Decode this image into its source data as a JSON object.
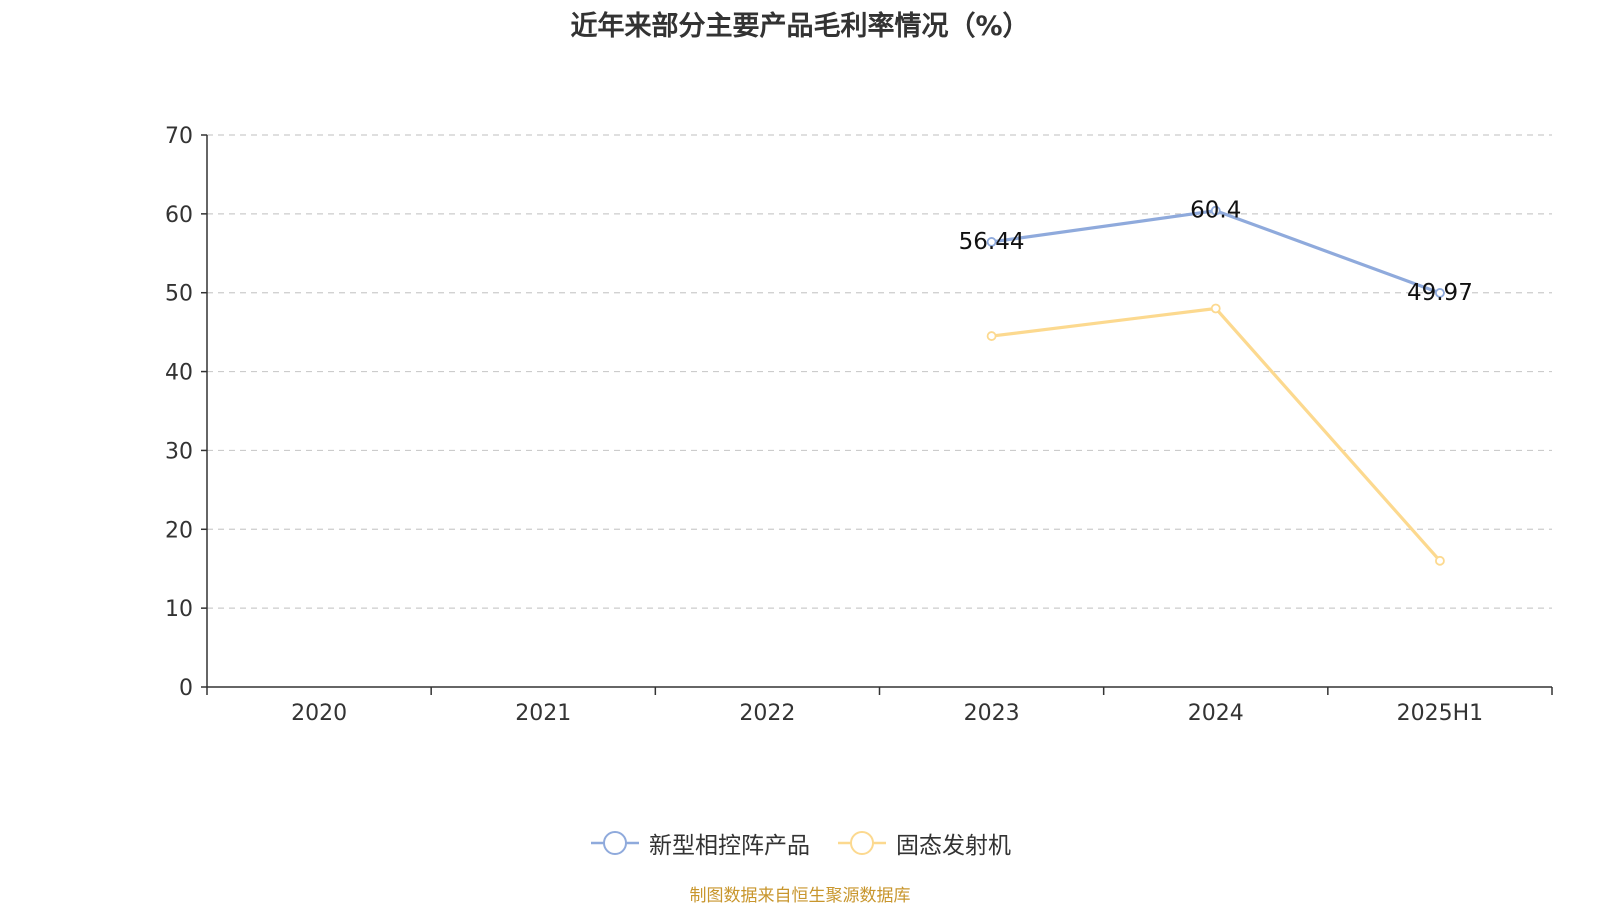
{
  "chart_data": {
    "type": "line",
    "title": "近年来部分主要产品毛利率情况（%）",
    "categories": [
      "2020",
      "2021",
      "2022",
      "2023",
      "2024",
      "2025H1"
    ],
    "ylim": [
      0,
      70
    ],
    "yticks": [
      0,
      10,
      20,
      30,
      40,
      50,
      60,
      70
    ],
    "grid": true,
    "legend_position": "bottom",
    "series": [
      {
        "name": "新型相控阵产品",
        "color": "#8faadc",
        "values": [
          null,
          null,
          null,
          56.44,
          60.4,
          49.97
        ],
        "data_labels": [
          null,
          null,
          null,
          "56.44",
          "60.4",
          "49.97"
        ]
      },
      {
        "name": "固态发射机",
        "color": "#fcd98f",
        "values": [
          null,
          null,
          null,
          44.5,
          48,
          16
        ],
        "data_labels": [
          null,
          null,
          null,
          null,
          null,
          null
        ]
      }
    ]
  },
  "source_note": "制图数据来自恒生聚源数据库"
}
